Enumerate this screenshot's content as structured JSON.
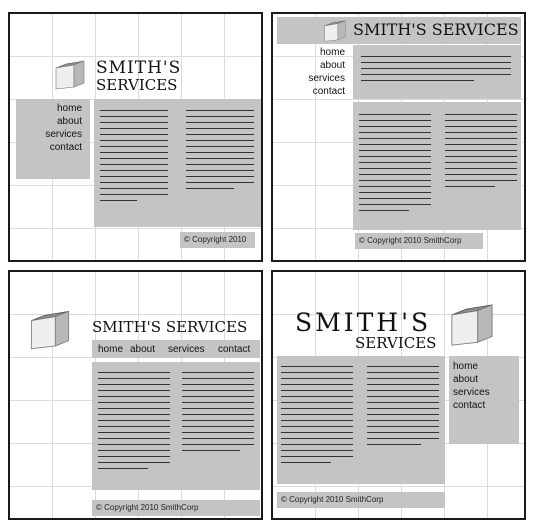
{
  "panels": [
    {
      "title_line1": "SMITH'S",
      "title_line2": "SERVICES",
      "nav": [
        "home",
        "about",
        "services",
        "contact"
      ],
      "copyright": "© Copyright 2010"
    },
    {
      "title": "SMITH'S SERVICES",
      "nav": [
        "home",
        "about",
        "services",
        "contact"
      ],
      "copyright": "© Copyright 2010 SmithCorp"
    },
    {
      "title": "SMITH'S SERVICES",
      "nav": [
        "home",
        "about",
        "services",
        "contact"
      ],
      "copyright": "© Copyright 2010 SmithCorp"
    },
    {
      "title_line1": "SMITH'S",
      "title_line2": "SERVICES",
      "nav": [
        "home",
        "about",
        "services",
        "contact"
      ],
      "copyright": "© Copyright 2010 SmithCorp"
    }
  ]
}
